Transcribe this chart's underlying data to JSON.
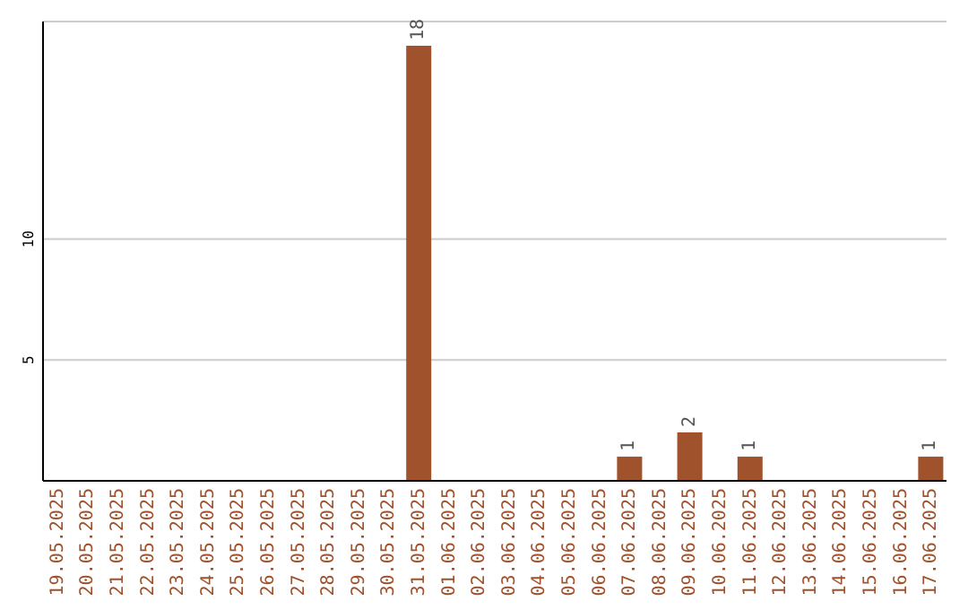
{
  "chart_data": {
    "type": "bar",
    "categories": [
      "19.05.2025",
      "20.05.2025",
      "21.05.2025",
      "22.05.2025",
      "23.05.2025",
      "24.05.2025",
      "25.05.2025",
      "26.05.2025",
      "27.05.2025",
      "28.05.2025",
      "29.05.2025",
      "30.05.2025",
      "31.05.2025",
      "01.06.2025",
      "02.06.2025",
      "03.06.2025",
      "04.06.2025",
      "05.06.2025",
      "06.06.2025",
      "07.06.2025",
      "08.06.2025",
      "09.06.2025",
      "10.06.2025",
      "11.06.2025",
      "12.06.2025",
      "13.06.2025",
      "14.06.2025",
      "15.06.2025",
      "16.06.2025",
      "17.06.2025"
    ],
    "values": [
      0,
      0,
      0,
      0,
      0,
      0,
      0,
      0,
      0,
      0,
      0,
      0,
      18,
      0,
      0,
      0,
      0,
      0,
      0,
      1,
      0,
      2,
      0,
      1,
      0,
      0,
      0,
      0,
      0,
      1
    ],
    "value_labels": [
      null,
      null,
      null,
      null,
      null,
      null,
      null,
      null,
      null,
      null,
      null,
      null,
      "18",
      null,
      null,
      null,
      null,
      null,
      null,
      "1",
      null,
      "2",
      null,
      "1",
      null,
      null,
      null,
      null,
      null,
      "1"
    ],
    "color": "#a0522d",
    "ylim": [
      0,
      19
    ],
    "yticks": [
      5,
      10
    ],
    "grid": "y"
  }
}
